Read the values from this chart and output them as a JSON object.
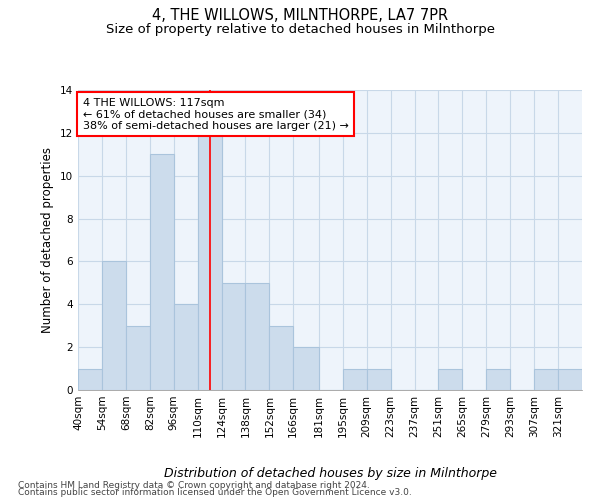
{
  "title": "4, THE WILLOWS, MILNTHORPE, LA7 7PR",
  "subtitle": "Size of property relative to detached houses in Milnthorpe",
  "xlabel": "Distribution of detached houses by size in Milnthorpe",
  "ylabel": "Number of detached properties",
  "bin_labels": [
    "40sqm",
    "54sqm",
    "68sqm",
    "82sqm",
    "96sqm",
    "110sqm",
    "124sqm",
    "138sqm",
    "152sqm",
    "166sqm",
    "181sqm",
    "195sqm",
    "209sqm",
    "223sqm",
    "237sqm",
    "251sqm",
    "265sqm",
    "279sqm",
    "293sqm",
    "307sqm",
    "321sqm"
  ],
  "bar_heights": [
    1,
    6,
    3,
    11,
    4,
    12,
    5,
    5,
    3,
    2,
    0,
    1,
    1,
    0,
    0,
    1,
    0,
    1,
    0,
    1,
    1
  ],
  "bar_color": "#ccdcec",
  "bar_edgecolor": "#aac4dc",
  "bar_linewidth": 0.8,
  "vline_x": 117,
  "vline_color": "red",
  "vline_linewidth": 1.2,
  "bin_edges": [
    40,
    54,
    68,
    82,
    96,
    110,
    124,
    138,
    152,
    166,
    181,
    195,
    209,
    223,
    237,
    251,
    265,
    279,
    293,
    307,
    321,
    335
  ],
  "annotation_line1": "4 THE WILLOWS: 117sqm",
  "annotation_line2": "← 61% of detached houses are smaller (34)",
  "annotation_line3": "38% of semi-detached houses are larger (21) →",
  "annotation_box_color": "white",
  "annotation_box_edgecolor": "red",
  "annotation_fontsize": 8,
  "ylim": [
    0,
    14
  ],
  "yticks": [
    0,
    2,
    4,
    6,
    8,
    10,
    12,
    14
  ],
  "grid_color": "#c8d8e8",
  "grid_linewidth": 0.8,
  "background_color": "#eef4fb",
  "title_fontsize": 10.5,
  "subtitle_fontsize": 9.5,
  "xlabel_fontsize": 9,
  "ylabel_fontsize": 8.5,
  "tick_fontsize": 7.5,
  "footer_line1": "Contains HM Land Registry data © Crown copyright and database right 2024.",
  "footer_line2": "Contains public sector information licensed under the Open Government Licence v3.0.",
  "footer_fontsize": 6.5
}
